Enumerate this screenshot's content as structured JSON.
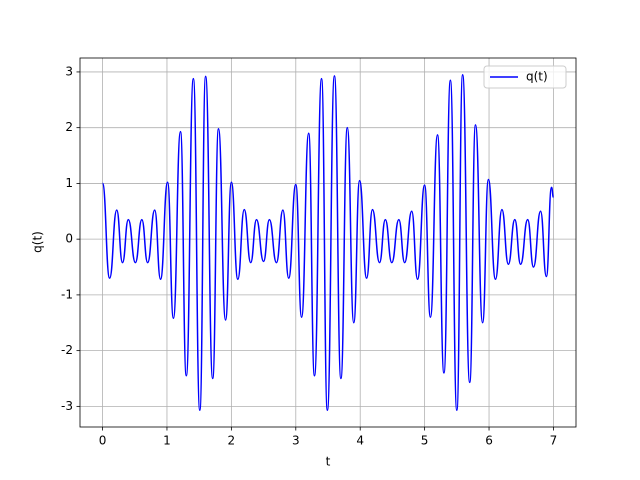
{
  "chart_data": {
    "type": "line",
    "x_label": "t",
    "y_label": "q(t)",
    "xlim": [
      -0.35,
      7.35
    ],
    "ylim": [
      -3.37,
      3.25
    ],
    "xticks": [
      0,
      1,
      2,
      3,
      4,
      5,
      6,
      7
    ],
    "yticks": [
      -3,
      -2,
      -1,
      0,
      1,
      2,
      3
    ],
    "grid": true,
    "legend": "upper right",
    "series": [
      {
        "name": "q(t)",
        "color": "#0000ff",
        "x": [
          0,
          0.11,
          0.22,
          0.31,
          0.4,
          0.51,
          0.61,
          0.7,
          0.81,
          0.9,
          1.01,
          1.1,
          1.21,
          1.3,
          1.41,
          1.51,
          1.6,
          1.71,
          1.8,
          1.91,
          2.0,
          2.1,
          2.2,
          2.3,
          2.39,
          2.5,
          2.59,
          2.7,
          2.8,
          2.89,
          3.0,
          3.09,
          3.2,
          3.29,
          3.4,
          3.49,
          3.6,
          3.7,
          3.8,
          3.9,
          3.99,
          4.1,
          4.19,
          4.3,
          4.39,
          4.49,
          4.6,
          4.69,
          4.8,
          4.89,
          5.0,
          5.09,
          5.2,
          5.3,
          5.4,
          5.5,
          5.59,
          5.7,
          5.79,
          5.9,
          5.99,
          6.1,
          6.2,
          6.3,
          6.4,
          6.49,
          6.6,
          6.69,
          6.8,
          6.89,
          6.97,
          7.0
        ],
        "values": [
          1.0,
          -0.7,
          0.52,
          -0.42,
          0.35,
          -0.42,
          0.35,
          -0.42,
          0.52,
          -0.72,
          1.02,
          -1.42,
          1.93,
          -2.45,
          2.88,
          -3.07,
          2.92,
          -2.5,
          1.98,
          -1.45,
          1.02,
          -0.72,
          0.53,
          -0.42,
          0.35,
          -0.4,
          0.35,
          -0.42,
          0.52,
          -0.7,
          0.98,
          -1.4,
          1.9,
          -2.45,
          2.88,
          -3.07,
          2.93,
          -2.5,
          2.0,
          -1.5,
          1.05,
          -0.7,
          0.53,
          -0.42,
          0.35,
          -0.42,
          0.35,
          -0.42,
          0.5,
          -0.72,
          0.97,
          -1.4,
          1.87,
          -2.4,
          2.85,
          -3.07,
          2.95,
          -2.57,
          2.05,
          -1.5,
          1.07,
          -0.72,
          0.53,
          -0.45,
          0.35,
          -0.45,
          0.35,
          -0.5,
          0.5,
          -0.67,
          0.93,
          0.75
        ]
      }
    ]
  }
}
